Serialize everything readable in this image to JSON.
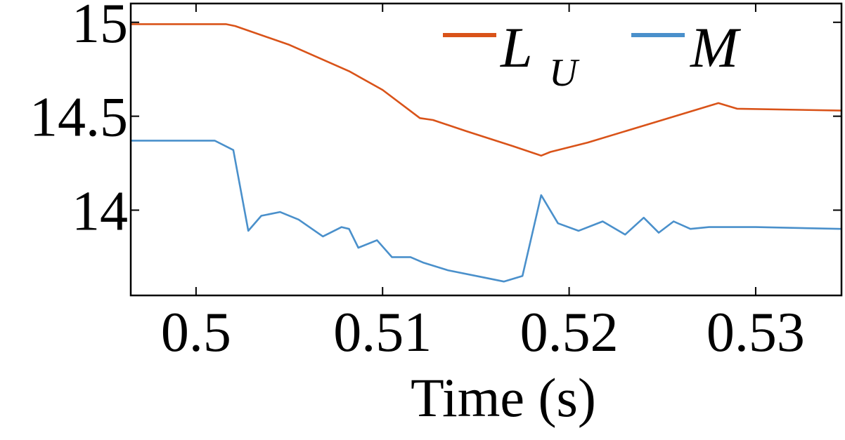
{
  "chart_data": {
    "type": "line",
    "xlabel": "Time (s)",
    "ylabel": "",
    "xlim": [
      0.4965,
      0.5346
    ],
    "ylim": [
      13.546,
      15.1
    ],
    "xticks": [
      {
        "value": 0.5,
        "label": "0.5"
      },
      {
        "value": 0.51,
        "label": "0.51"
      },
      {
        "value": 0.52,
        "label": "0.52"
      },
      {
        "value": 0.53,
        "label": "0.53"
      }
    ],
    "yticks": [
      {
        "value": 15,
        "label": "15"
      },
      {
        "value": 14.5,
        "label": "14.5"
      },
      {
        "value": 14,
        "label": "14"
      }
    ],
    "grid": false,
    "legend_position": "top-right",
    "series": [
      {
        "name": "L",
        "subscript": "U",
        "color": "#d95319",
        "x": [
          0.4965,
          0.5016,
          0.5021,
          0.505,
          0.5082,
          0.51,
          0.512,
          0.5127,
          0.5145,
          0.517,
          0.5185,
          0.519,
          0.521,
          0.525,
          0.528,
          0.529,
          0.5346
        ],
        "y": [
          14.99,
          14.99,
          14.98,
          14.88,
          14.74,
          14.64,
          14.49,
          14.48,
          14.42,
          14.34,
          14.29,
          14.31,
          14.36,
          14.48,
          14.57,
          14.54,
          14.53
        ]
      },
      {
        "name": "M",
        "subscript": "",
        "color": "#4a90cb",
        "x": [
          0.4965,
          0.501,
          0.502,
          0.5028,
          0.5035,
          0.5045,
          0.5055,
          0.5068,
          0.5078,
          0.5082,
          0.5087,
          0.5097,
          0.5105,
          0.5115,
          0.5122,
          0.5135,
          0.5155,
          0.5165,
          0.5175,
          0.5185,
          0.5194,
          0.5205,
          0.5218,
          0.523,
          0.524,
          0.5248,
          0.5256,
          0.5265,
          0.5275,
          0.5285,
          0.53,
          0.5346
        ],
        "y": [
          14.37,
          14.37,
          14.32,
          13.89,
          13.97,
          13.99,
          13.95,
          13.86,
          13.91,
          13.9,
          13.8,
          13.84,
          13.75,
          13.75,
          13.72,
          13.68,
          13.64,
          13.62,
          13.65,
          14.08,
          13.93,
          13.89,
          13.94,
          13.87,
          13.96,
          13.88,
          13.94,
          13.9,
          13.91,
          13.91,
          13.91,
          13.9
        ]
      }
    ]
  }
}
